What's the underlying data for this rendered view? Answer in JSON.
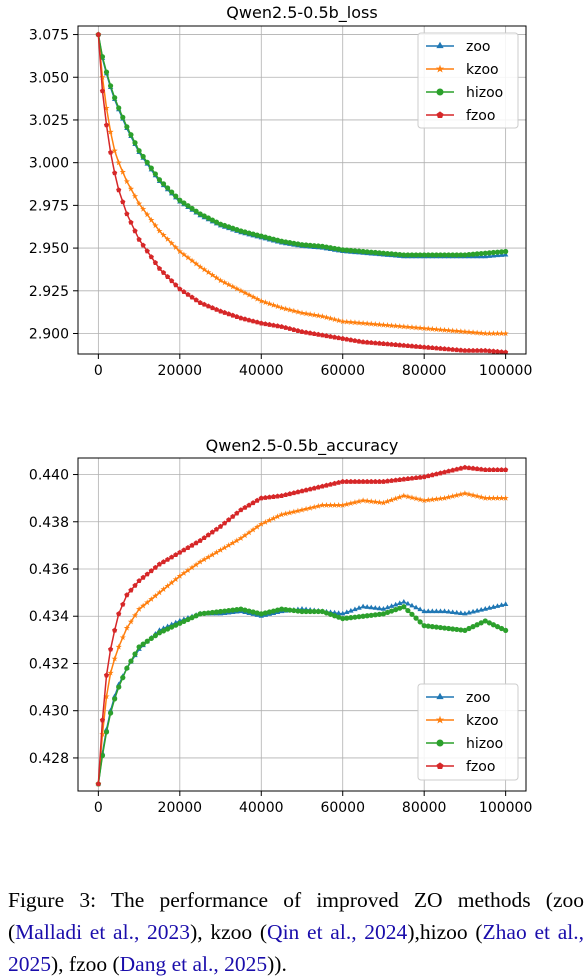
{
  "chart_data": [
    {
      "id": "loss",
      "type": "line",
      "title": "Qwen2.5-0.5b_loss",
      "xlim": [
        -5000,
        105000
      ],
      "ylim": [
        2.888,
        3.08
      ],
      "x_ticks": [
        0,
        20000,
        40000,
        60000,
        80000,
        100000
      ],
      "x_tick_labels": [
        "0",
        "20000",
        "40000",
        "60000",
        "80000",
        "100000"
      ],
      "y_ticks": [
        2.9,
        2.925,
        2.95,
        2.975,
        3.0,
        3.025,
        3.05,
        3.075
      ],
      "y_tick_labels": [
        "2.900",
        "2.925",
        "2.950",
        "2.975",
        "3.000",
        "3.025",
        "3.050",
        "3.075"
      ],
      "grid": true,
      "legend": "upper right",
      "x": [
        0,
        1000,
        2000,
        3000,
        4000,
        5000,
        7000,
        10000,
        15000,
        20000,
        25000,
        30000,
        35000,
        40000,
        45000,
        50000,
        55000,
        60000,
        65000,
        70000,
        75000,
        80000,
        85000,
        90000,
        95000,
        100000
      ],
      "series": [
        {
          "name": "zoo",
          "color": "#1f77b4",
          "marker": "triangle",
          "values": [
            3.075,
            3.061,
            3.052,
            3.044,
            3.037,
            3.031,
            3.02,
            3.006,
            2.989,
            2.977,
            2.969,
            2.963,
            2.959,
            2.956,
            2.953,
            2.951,
            2.95,
            2.948,
            2.947,
            2.946,
            2.945,
            2.945,
            2.945,
            2.945,
            2.945,
            2.946
          ]
        },
        {
          "name": "kzoo",
          "color": "#ff7f0e",
          "marker": "star",
          "values": [
            3.075,
            3.05,
            3.032,
            3.018,
            3.007,
            3.0,
            2.989,
            2.976,
            2.96,
            2.948,
            2.939,
            2.931,
            2.925,
            2.919,
            2.915,
            2.912,
            2.91,
            2.907,
            2.906,
            2.905,
            2.904,
            2.903,
            2.902,
            2.901,
            2.9,
            2.9
          ]
        },
        {
          "name": "hizoo",
          "color": "#2ca02c",
          "marker": "circle",
          "values": [
            3.075,
            3.062,
            3.053,
            3.045,
            3.038,
            3.032,
            3.021,
            3.007,
            2.99,
            2.978,
            2.97,
            2.964,
            2.96,
            2.957,
            2.954,
            2.952,
            2.951,
            2.949,
            2.948,
            2.947,
            2.946,
            2.946,
            2.946,
            2.946,
            2.947,
            2.948
          ]
        },
        {
          "name": "fzoo",
          "color": "#d62728",
          "marker": "pentagon",
          "values": [
            3.075,
            3.042,
            3.022,
            3.006,
            2.994,
            2.984,
            2.97,
            2.955,
            2.938,
            2.926,
            2.918,
            2.913,
            2.909,
            2.906,
            2.904,
            2.901,
            2.899,
            2.897,
            2.895,
            2.894,
            2.893,
            2.892,
            2.891,
            2.89,
            2.89,
            2.889
          ]
        }
      ]
    },
    {
      "id": "accuracy",
      "type": "line",
      "title": "Qwen2.5-0.5b_accuracy",
      "xlim": [
        -5000,
        105000
      ],
      "ylim": [
        0.4266,
        0.4407
      ],
      "x_ticks": [
        0,
        20000,
        40000,
        60000,
        80000,
        100000
      ],
      "x_tick_labels": [
        "0",
        "20000",
        "40000",
        "60000",
        "80000",
        "100000"
      ],
      "y_ticks": [
        0.428,
        0.43,
        0.432,
        0.434,
        0.436,
        0.438,
        0.44
      ],
      "y_tick_labels": [
        "0.428",
        "0.430",
        "0.432",
        "0.434",
        "0.436",
        "0.438",
        "0.440"
      ],
      "grid": true,
      "legend": "lower right",
      "x": [
        0,
        1000,
        2000,
        3000,
        4000,
        5000,
        7000,
        10000,
        15000,
        20000,
        25000,
        30000,
        35000,
        40000,
        45000,
        50000,
        55000,
        60000,
        65000,
        70000,
        75000,
        80000,
        85000,
        90000,
        95000,
        100000
      ],
      "series": [
        {
          "name": "zoo",
          "color": "#1f77b4",
          "marker": "triangle",
          "values": [
            0.4269,
            0.4282,
            0.4292,
            0.43,
            0.4306,
            0.4311,
            0.4318,
            0.4326,
            0.4334,
            0.4338,
            0.4341,
            0.4341,
            0.4342,
            0.434,
            0.4342,
            0.4343,
            0.4342,
            0.4341,
            0.4344,
            0.4343,
            0.4346,
            0.4342,
            0.4342,
            0.4341,
            0.4343,
            0.4345
          ]
        },
        {
          "name": "kzoo",
          "color": "#ff7f0e",
          "marker": "star",
          "values": [
            0.4269,
            0.429,
            0.4306,
            0.4316,
            0.4322,
            0.4327,
            0.4335,
            0.4343,
            0.435,
            0.4357,
            0.4363,
            0.4368,
            0.4373,
            0.4379,
            0.4383,
            0.4385,
            0.4387,
            0.4387,
            0.4389,
            0.4388,
            0.4391,
            0.4389,
            0.439,
            0.4392,
            0.439,
            0.439
          ]
        },
        {
          "name": "hizoo",
          "color": "#2ca02c",
          "marker": "circle",
          "values": [
            0.4269,
            0.4281,
            0.4291,
            0.4299,
            0.4305,
            0.431,
            0.4318,
            0.4327,
            0.4333,
            0.4337,
            0.4341,
            0.4342,
            0.4343,
            0.4341,
            0.4343,
            0.4342,
            0.4342,
            0.4339,
            0.434,
            0.4341,
            0.4344,
            0.4336,
            0.4335,
            0.4334,
            0.4338,
            0.4334
          ]
        },
        {
          "name": "fzoo",
          "color": "#d62728",
          "marker": "pentagon",
          "values": [
            0.4269,
            0.4296,
            0.4315,
            0.4326,
            0.4334,
            0.4341,
            0.4349,
            0.4355,
            0.4362,
            0.4367,
            0.4372,
            0.4378,
            0.4385,
            0.439,
            0.4391,
            0.4393,
            0.4395,
            0.4397,
            0.4397,
            0.4397,
            0.4398,
            0.4399,
            0.4401,
            0.4403,
            0.4402,
            0.4402
          ]
        }
      ]
    }
  ],
  "caption": {
    "prefix": "Figure 3:  The performance of improved ZO methods (zoo (",
    "cite1": "Malladi et al., 2023",
    "mid1": "), kzoo (",
    "cite2": "Qin et al., 2024",
    "mid2": "),hizoo (",
    "cite3": "Zhao et al., 2025",
    "mid3": "), fzoo (",
    "cite4": "Dang et al., 2025",
    "suffix": "))."
  }
}
